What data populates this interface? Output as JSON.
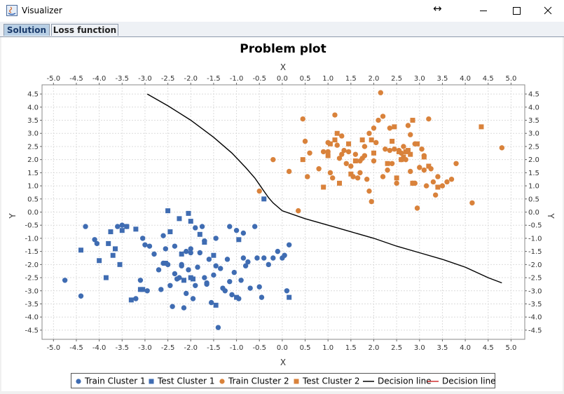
{
  "window": {
    "title": "Visualizer",
    "controls": [
      "minimize-icon",
      "maximize-icon",
      "close-icon"
    ]
  },
  "tabs": [
    {
      "label": "Solution",
      "selected": true
    },
    {
      "label": "Loss function",
      "selected": false
    }
  ],
  "chart_data": {
    "type": "scatter",
    "title": "Problem plot",
    "xlabel": "X",
    "ylabel": "Y",
    "xlabel_top": "X",
    "ylabel_right": "Y",
    "xlim": [
      -5.25,
      5.3
    ],
    "ylim": [
      -4.85,
      4.85
    ],
    "xticks": [
      "-5.0",
      "-4.5",
      "-4.0",
      "-3.5",
      "-3.0",
      "-2.5",
      "-2.0",
      "-1.5",
      "-1.0",
      "-0.5",
      "0.0",
      "0.5",
      "1.0",
      "1.5",
      "2.0",
      "2.5",
      "3.0",
      "3.5",
      "4.0",
      "4.5",
      "5.0"
    ],
    "yticks": [
      "4.5",
      "4.0",
      "3.5",
      "3.0",
      "2.5",
      "2.0",
      "1.5",
      "1.0",
      "0.5",
      "0.0",
      "-0.5",
      "-1.0",
      "-1.5",
      "-2.0",
      "-2.5",
      "-3.0",
      "-3.5",
      "-4.0",
      "-4.5"
    ],
    "grid": true,
    "legend_position": "bottom",
    "series": [
      {
        "name": "Train Cluster 1",
        "marker": "circle",
        "color": "#3f6cb2",
        "x": [
          -4.75,
          -4.4,
          -4.3,
          -4.1,
          -4.05,
          -3.6,
          -3.5,
          -3.4,
          -3.2,
          -3.1,
          -3.05,
          -2.95,
          -2.9,
          -2.8,
          -2.7,
          -2.65,
          -2.6,
          -2.55,
          -2.5,
          -2.45,
          -2.4,
          -2.35,
          -2.3,
          -2.25,
          -2.2,
          -2.15,
          -2.1,
          -2.05,
          -2.0,
          -1.95,
          -1.9,
          -1.85,
          -1.8,
          -1.75,
          -1.7,
          -1.65,
          -1.6,
          -1.55,
          -1.5,
          -1.45,
          -1.4,
          -1.35,
          -1.3,
          -1.25,
          -1.2,
          -1.15,
          -1.1,
          -1.05,
          -1.0,
          -0.95,
          -0.9,
          -0.85,
          -0.8,
          -0.75,
          -0.7,
          -0.6,
          -0.55,
          -0.5,
          -0.45,
          -0.4,
          -0.3,
          -0.2,
          -0.1,
          0.0,
          0.05,
          0.1,
          0.15,
          -2.6,
          -2.1,
          -1.9,
          -1.7,
          -1.45,
          -0.85,
          -1.15,
          -2.35,
          -2.0,
          -3.0,
          -2.2,
          -1.65
        ],
        "y": [
          -2.6,
          -3.2,
          -0.55,
          -1.05,
          -1.2,
          -0.55,
          -0.5,
          -0.55,
          -3.3,
          -2.6,
          -1.0,
          -3.0,
          -1.3,
          -1.6,
          -2.2,
          -2.95,
          -1.95,
          -1.4,
          -2.0,
          -2.8,
          -3.6,
          -1.3,
          -2.55,
          -2.5,
          -2.0,
          -3.65,
          -3.1,
          -2.2,
          -1.4,
          -3.3,
          -2.8,
          -2.1,
          -1.55,
          -0.55,
          -2.5,
          -2.7,
          -1.8,
          -3.45,
          -2.4,
          -2.05,
          -4.4,
          -2.15,
          -2.9,
          -3.0,
          -1.8,
          -0.55,
          -3.15,
          -2.3,
          -0.7,
          -3.3,
          -2.6,
          -1.75,
          -2.05,
          -1.9,
          -2.9,
          -0.55,
          -1.75,
          -2.85,
          -3.25,
          -1.75,
          -2.0,
          -1.75,
          -1.5,
          -1.75,
          -1.65,
          -3.0,
          -1.25,
          -0.9,
          -1.5,
          -0.6,
          -1.1,
          -1.0,
          -0.8,
          -2.65,
          -2.35,
          -1.55,
          -1.25,
          -2.05,
          -2.75
        ]
      },
      {
        "name": "Test Cluster 1",
        "marker": "square",
        "color": "#3f6cb2",
        "x": [
          -4.4,
          -4.0,
          -3.85,
          -3.75,
          -3.7,
          -3.65,
          -3.55,
          -3.5,
          -3.4,
          -3.3,
          -3.2,
          -3.1,
          -3.05,
          -2.5,
          -2.45,
          -2.2,
          -2.15,
          -2.05,
          -2.0,
          -1.95,
          -1.8,
          -1.7,
          -1.5,
          -1.45,
          -1.0,
          -0.95,
          -0.4,
          0.15,
          -2.55,
          -2.25,
          -2.0,
          -3.8
        ],
        "y": [
          -1.45,
          -1.85,
          -2.5,
          -0.75,
          -1.65,
          -1.4,
          -2.0,
          -0.7,
          -0.55,
          -3.35,
          -0.65,
          -2.95,
          -2.95,
          0.05,
          -0.75,
          -1.6,
          -2.6,
          -0.05,
          -0.35,
          -2.55,
          -0.85,
          -1.15,
          -1.65,
          -3.55,
          -3.25,
          -1.05,
          0.5,
          -3.25,
          -1.95,
          -0.25,
          -2.5,
          -1.2
        ]
      },
      {
        "name": "Train Cluster 2",
        "marker": "circle",
        "color": "#d9823b",
        "x": [
          -0.5,
          -0.2,
          0.35,
          0.45,
          0.5,
          0.55,
          0.6,
          0.8,
          0.9,
          1.0,
          1.05,
          1.1,
          1.15,
          1.2,
          1.25,
          1.3,
          1.35,
          1.4,
          1.45,
          1.5,
          1.55,
          1.6,
          1.65,
          1.7,
          1.75,
          1.8,
          1.85,
          1.9,
          1.95,
          2.0,
          2.05,
          2.1,
          2.15,
          2.2,
          2.25,
          2.3,
          2.35,
          2.4,
          2.45,
          2.5,
          2.55,
          2.6,
          2.65,
          2.7,
          2.75,
          2.8,
          2.85,
          2.9,
          2.95,
          3.0,
          3.05,
          3.1,
          3.15,
          3.2,
          3.25,
          3.3,
          3.35,
          3.4,
          3.5,
          3.6,
          3.7,
          3.8,
          4.15,
          4.8,
          0.15,
          1.0,
          1.3,
          1.8,
          2.0,
          2.2,
          2.6,
          2.9,
          3.1,
          1.7,
          1.9,
          2.35,
          2.8
        ],
        "y": [
          0.8,
          2.0,
          0.05,
          3.55,
          2.7,
          1.35,
          2.25,
          1.65,
          2.3,
          2.65,
          1.5,
          1.3,
          3.7,
          2.55,
          2.05,
          2.9,
          2.35,
          1.85,
          2.3,
          1.75,
          1.35,
          2.2,
          1.3,
          1.5,
          2.05,
          2.5,
          1.25,
          3.0,
          0.4,
          1.95,
          2.65,
          3.5,
          4.55,
          1.35,
          2.4,
          1.6,
          3.2,
          1.85,
          2.4,
          1.1,
          2.35,
          2.25,
          2.5,
          2.0,
          3.3,
          2.95,
          1.1,
          2.6,
          0.15,
          1.7,
          2.4,
          1.6,
          1.0,
          3.55,
          1.65,
          1.15,
          0.65,
          1.35,
          1.0,
          1.15,
          1.25,
          1.85,
          0.35,
          2.45,
          1.55,
          2.3,
          2.2,
          2.15,
          3.2,
          3.65,
          2.0,
          1.1,
          2.15,
          1.95,
          0.8,
          2.35,
          1.55
        ]
      },
      {
        "name": "Test Cluster 2",
        "marker": "square",
        "color": "#d9823b",
        "x": [
          0.45,
          0.9,
          1.0,
          1.05,
          1.15,
          1.2,
          1.25,
          1.45,
          1.5,
          1.6,
          1.75,
          1.95,
          2.0,
          2.3,
          2.4,
          2.45,
          2.5,
          2.55,
          2.6,
          2.65,
          2.7,
          2.75,
          2.8,
          2.85,
          2.95,
          3.1,
          3.2,
          3.4,
          4.35,
          2.85
        ],
        "y": [
          2.0,
          0.95,
          2.15,
          2.6,
          2.75,
          3.0,
          1.1,
          2.6,
          1.45,
          1.95,
          2.75,
          2.75,
          2.25,
          1.85,
          2.7,
          3.25,
          1.3,
          2.3,
          2.0,
          2.1,
          2.3,
          2.35,
          2.2,
          3.5,
          2.6,
          2.1,
          1.75,
          0.95,
          3.25,
          1.1
        ]
      },
      {
        "name": "Decision line",
        "type": "line",
        "color": "#000000",
        "x": [
          -2.95,
          -2.5,
          -2.0,
          -1.5,
          -1.1,
          -0.8,
          -0.6,
          -0.5,
          -0.4,
          -0.3,
          -0.2,
          -0.1,
          0.0,
          0.5,
          1.0,
          1.5,
          2.0,
          2.5,
          3.0,
          3.5,
          4.0,
          4.5,
          4.8
        ],
        "y": [
          4.5,
          4.05,
          3.5,
          2.85,
          2.25,
          1.7,
          1.3,
          1.05,
          0.8,
          0.55,
          0.35,
          0.2,
          0.05,
          -0.25,
          -0.5,
          -0.75,
          -1.0,
          -1.3,
          -1.55,
          -1.8,
          -2.1,
          -2.5,
          -2.7
        ]
      },
      {
        "name": "Decision line",
        "type": "line",
        "color": "#d03030",
        "x": [],
        "y": []
      }
    ]
  }
}
